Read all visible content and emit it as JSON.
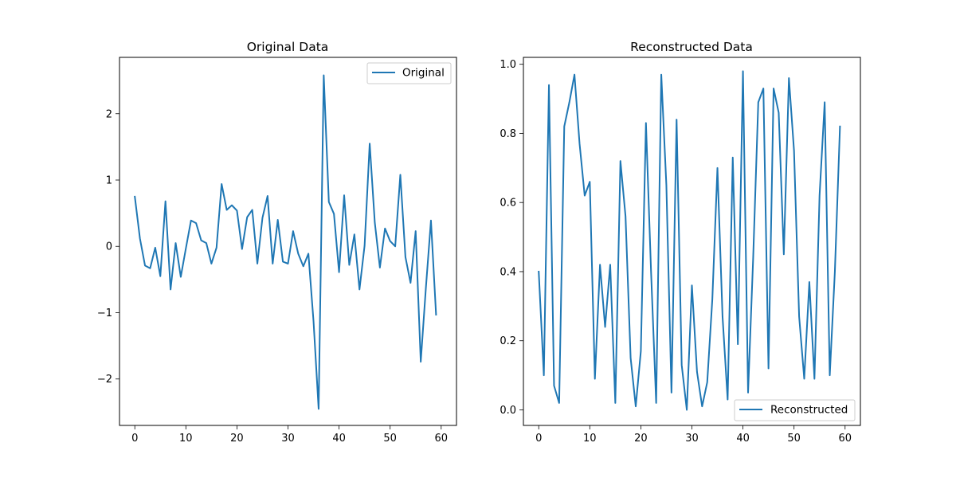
{
  "chart_data": [
    {
      "type": "line",
      "title": "Original Data",
      "xlabel": "",
      "ylabel": "",
      "xlim": [
        -3,
        63
      ],
      "ylim": [
        -2.7,
        2.85
      ],
      "xticks": [
        0,
        10,
        20,
        30,
        40,
        50,
        60
      ],
      "yticks": [
        -2,
        -1,
        0,
        1,
        2
      ],
      "ytick_labels": [
        "−2",
        "−1",
        "0",
        "1",
        "2"
      ],
      "legend_position": "upper right",
      "grid": false,
      "series": [
        {
          "name": "Original",
          "color": "#1f77b4",
          "x": [
            0,
            1,
            2,
            3,
            4,
            5,
            6,
            7,
            8,
            9,
            10,
            11,
            12,
            13,
            14,
            15,
            16,
            17,
            18,
            19,
            20,
            21,
            22,
            23,
            24,
            25,
            26,
            27,
            28,
            29,
            30,
            31,
            32,
            33,
            34,
            35,
            36,
            37,
            38,
            39,
            40,
            41,
            42,
            43,
            44,
            45,
            46,
            47,
            48,
            49,
            50,
            51,
            52,
            53,
            54,
            55,
            56,
            57,
            58,
            59
          ],
          "values": [
            0.75,
            0.12,
            -0.29,
            -0.33,
            -0.02,
            -0.45,
            0.68,
            -0.65,
            0.05,
            -0.46,
            -0.03,
            0.39,
            0.35,
            0.09,
            0.05,
            -0.26,
            -0.02,
            0.94,
            0.55,
            0.62,
            0.54,
            -0.04,
            0.44,
            0.55,
            -0.26,
            0.43,
            0.76,
            -0.26,
            0.4,
            -0.23,
            -0.26,
            0.23,
            -0.11,
            -0.3,
            -0.11,
            -1.13,
            -2.45,
            2.58,
            0.67,
            0.49,
            -0.39,
            0.77,
            -0.28,
            0.18,
            -0.65,
            0.01,
            1.55,
            0.36,
            -0.32,
            0.27,
            0.08,
            0.0,
            1.08,
            -0.16,
            -0.55,
            0.23,
            -1.74,
            -0.63,
            0.39,
            -1.03
          ]
        }
      ]
    },
    {
      "type": "line",
      "title": "Reconstructed Data",
      "xlabel": "",
      "ylabel": "",
      "xlim": [
        -3,
        63
      ],
      "ylim": [
        -0.045,
        1.02
      ],
      "xticks": [
        0,
        10,
        20,
        30,
        40,
        50,
        60
      ],
      "yticks": [
        0.0,
        0.2,
        0.4,
        0.6,
        0.8,
        1.0
      ],
      "ytick_labels": [
        "0.0",
        "0.2",
        "0.4",
        "0.6",
        "0.8",
        "1.0"
      ],
      "legend_position": "lower right",
      "grid": false,
      "series": [
        {
          "name": "Reconstructed",
          "color": "#1f77b4",
          "x": [
            0,
            1,
            2,
            3,
            4,
            5,
            6,
            7,
            8,
            9,
            10,
            11,
            12,
            13,
            14,
            15,
            16,
            17,
            18,
            19,
            20,
            21,
            22,
            23,
            24,
            25,
            26,
            27,
            28,
            29,
            30,
            31,
            32,
            33,
            34,
            35,
            36,
            37,
            38,
            39,
            40,
            41,
            42,
            43,
            44,
            45,
            46,
            47,
            48,
            49,
            50,
            51,
            52,
            53,
            54,
            55,
            56,
            57,
            58,
            59
          ],
          "values": [
            0.4,
            0.1,
            0.94,
            0.07,
            0.02,
            0.82,
            0.89,
            0.97,
            0.77,
            0.62,
            0.66,
            0.09,
            0.42,
            0.24,
            0.42,
            0.02,
            0.72,
            0.56,
            0.15,
            0.01,
            0.17,
            0.83,
            0.4,
            0.02,
            0.97,
            0.65,
            0.05,
            0.84,
            0.13,
            0.0,
            0.36,
            0.11,
            0.01,
            0.08,
            0.32,
            0.7,
            0.27,
            0.03,
            0.73,
            0.19,
            0.98,
            0.05,
            0.44,
            0.89,
            0.93,
            0.12,
            0.93,
            0.86,
            0.45,
            0.96,
            0.75,
            0.27,
            0.09,
            0.37,
            0.09,
            0.62,
            0.89,
            0.1,
            0.4,
            0.82
          ]
        }
      ]
    }
  ]
}
